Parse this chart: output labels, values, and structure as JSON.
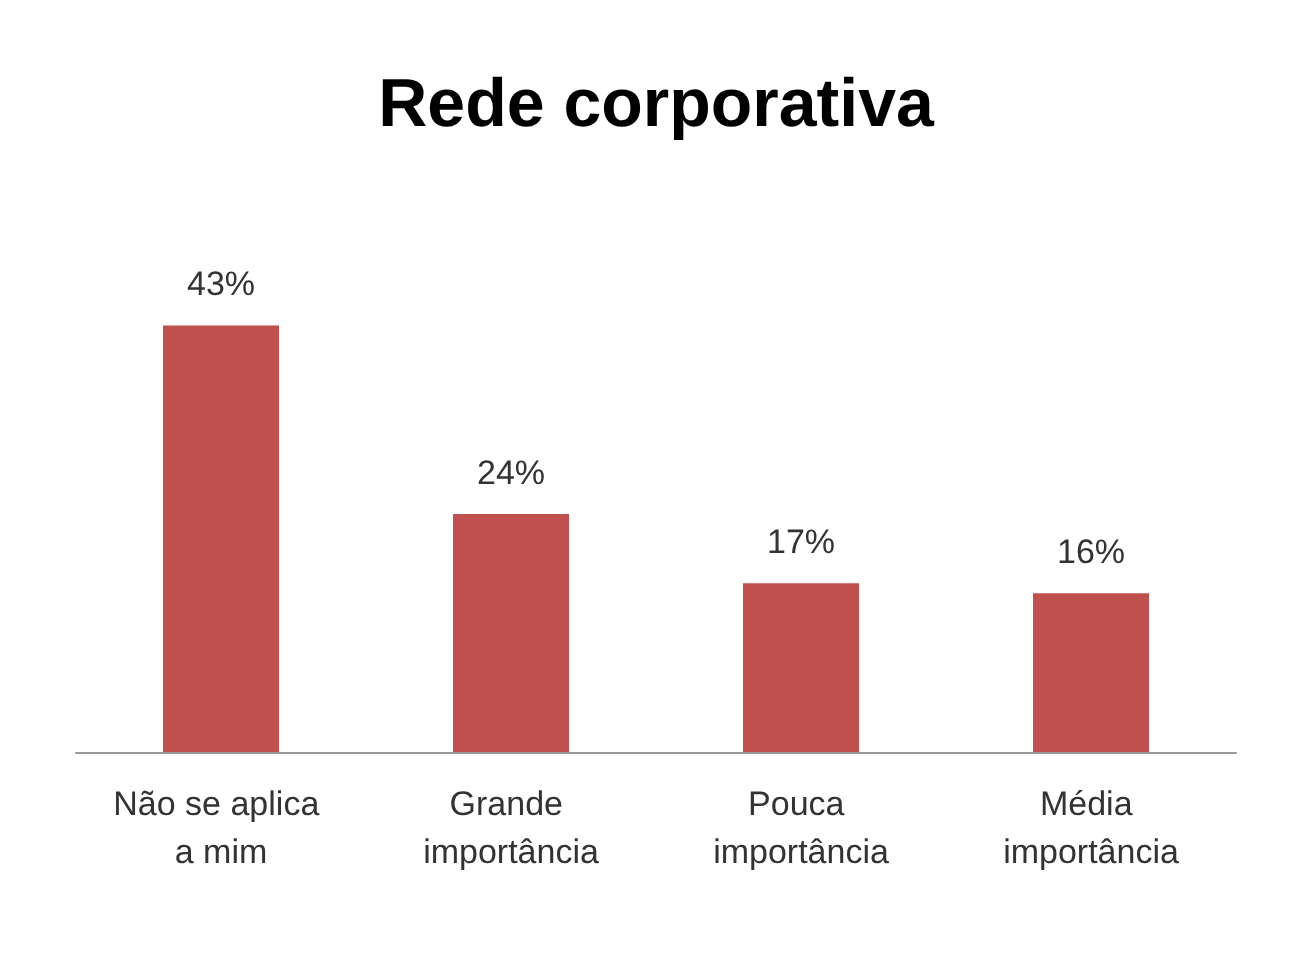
{
  "chart_data": {
    "type": "bar",
    "title": "Rede corporativa",
    "categories": [
      "Não se aplica a mim",
      "Grande importância",
      "Pouca importância",
      "Média importância"
    ],
    "values": [
      43,
      24,
      17,
      16
    ],
    "value_labels": [
      "43%",
      "24%",
      "17%",
      "16%"
    ],
    "color": "#c0504d"
  }
}
